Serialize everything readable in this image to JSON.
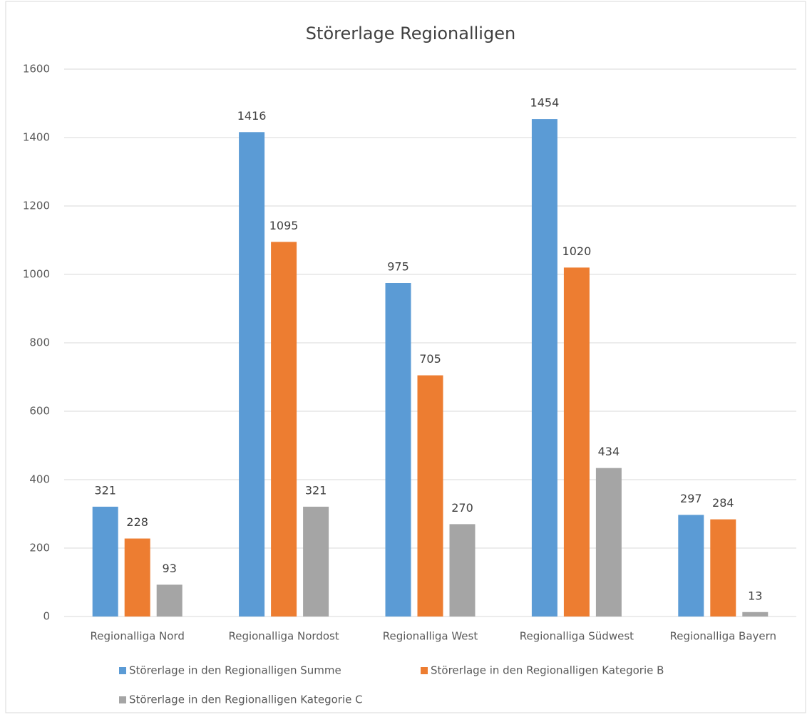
{
  "chart_data": {
    "type": "bar",
    "title": "Störerlage Regionalligen",
    "categories": [
      "Regionalliga Nord",
      "Regionalliga Nordost",
      "Regionalliga West",
      "Regionalliga Südwest",
      "Regionalliga Bayern"
    ],
    "series": [
      {
        "name": "Störerlage in den Regionalligen Summe",
        "color": "#5b9bd5",
        "values": [
          321,
          1416,
          975,
          1454,
          297
        ]
      },
      {
        "name": "Störerlage in den Regionalligen Kategorie B",
        "color": "#ed7d31",
        "values": [
          228,
          1095,
          705,
          1020,
          284
        ]
      },
      {
        "name": "Störerlage in den Regionalligen Kategorie C",
        "color": "#a5a5a5",
        "values": [
          93,
          321,
          270,
          434,
          13
        ]
      }
    ],
    "ylim": [
      0,
      1600
    ],
    "yticks": [
      0,
      200,
      400,
      600,
      800,
      1000,
      1200,
      1400,
      1600
    ],
    "grid": true,
    "legend": "bottom"
  }
}
